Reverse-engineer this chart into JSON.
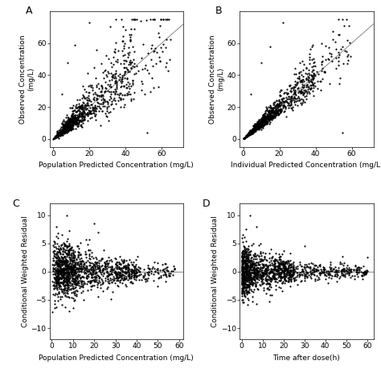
{
  "panel_labels": [
    "A",
    "B",
    "C",
    "D"
  ],
  "panel_A": {
    "xlabel": "Population Predicted Concentration (mg/L)",
    "ylabel": "Observed Concentration\n(mg/L)",
    "xlim": [
      -2,
      72
    ],
    "ylim": [
      -5,
      80
    ],
    "xticks": [
      0,
      20,
      40,
      60
    ],
    "yticks": [
      0,
      20,
      40,
      60
    ],
    "identity_line": [
      0,
      72
    ]
  },
  "panel_B": {
    "xlabel": "Individual Predicted Concentration (mg/L)",
    "ylabel": "Observed Concentration\n(mg/L)",
    "xlim": [
      -2,
      72
    ],
    "ylim": [
      -5,
      80
    ],
    "xticks": [
      0,
      20,
      40,
      60
    ],
    "yticks": [
      0,
      20,
      40,
      60
    ],
    "identity_line": [
      0,
      72
    ]
  },
  "panel_C": {
    "xlabel": "Population Predicted Concentration (mg/L)",
    "ylabel": "Conditional Weighted Residual",
    "xlim": [
      -1,
      62
    ],
    "ylim": [
      -12,
      12
    ],
    "xticks": [
      0,
      10,
      20,
      30,
      40,
      50,
      60
    ],
    "yticks": [
      -10,
      -5,
      0,
      5,
      10
    ],
    "hline": 0
  },
  "panel_D": {
    "xlabel": "Time after dose(h)",
    "ylabel": "Conditional Weighted Residual",
    "xlim": [
      -1,
      63
    ],
    "ylim": [
      -12,
      12
    ],
    "xticks": [
      0,
      10,
      20,
      30,
      40,
      50,
      60
    ],
    "yticks": [
      -10,
      -5,
      0,
      5,
      10
    ],
    "hline": 0
  },
  "dot_color": "#000000",
  "dot_size": 2.5,
  "dot_alpha": 1.0,
  "line_color": "#888888",
  "background_color": "white",
  "font_size_label": 6.5,
  "font_size_tick": 6.5,
  "font_size_panel_label": 9,
  "n_points_AB": 1000,
  "n_points_CD": 1400
}
